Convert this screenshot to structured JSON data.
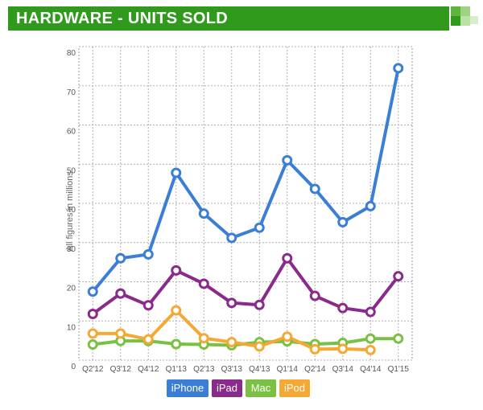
{
  "header": {
    "title": "HARDWARE - UNITS SOLD",
    "color": "#2f9a1c"
  },
  "chart_data": {
    "type": "line",
    "title": "HARDWARE - UNITS SOLD",
    "ylabel": "All figures in millions",
    "xlabel": "",
    "ylim": [
      0,
      80
    ],
    "yticks": [
      0,
      10,
      20,
      30,
      40,
      50,
      60,
      70,
      80
    ],
    "grid": true,
    "legend_position": "bottom",
    "categories": [
      "Q2'12",
      "Q3'12",
      "Q4'12",
      "Q1'13",
      "Q2'13",
      "Q3'13",
      "Q4'13",
      "Q1'14",
      "Q2'14",
      "Q3'14",
      "Q4'14",
      "Q1'15"
    ],
    "series": [
      {
        "name": "iPhone",
        "color": "#3a7fd5",
        "values": [
          17.5,
          26.0,
          27.0,
          47.8,
          37.4,
          31.2,
          33.8,
          51.0,
          43.7,
          35.2,
          39.3,
          74.5
        ]
      },
      {
        "name": "iPad",
        "color": "#8a2a8c",
        "values": [
          11.8,
          17.0,
          14.0,
          22.9,
          19.5,
          14.6,
          14.1,
          26.0,
          16.4,
          13.3,
          12.3,
          21.4
        ]
      },
      {
        "name": "Mac",
        "color": "#7ac143",
        "values": [
          4.0,
          4.9,
          4.9,
          4.1,
          4.0,
          3.8,
          4.6,
          4.8,
          4.1,
          4.4,
          5.5,
          5.5
        ]
      },
      {
        "name": "iPod",
        "color": "#f5a833",
        "values": [
          6.8,
          6.8,
          5.3,
          12.7,
          5.6,
          4.6,
          3.5,
          6.0,
          2.8,
          2.9,
          2.6,
          null
        ]
      }
    ]
  }
}
